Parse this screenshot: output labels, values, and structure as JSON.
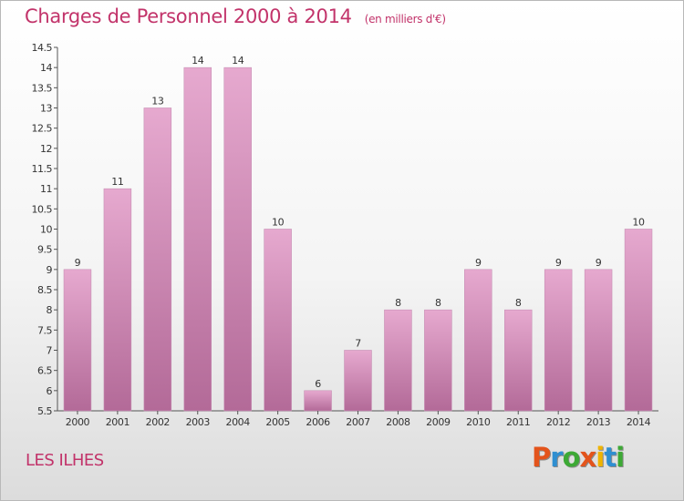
{
  "header": {
    "title": "Charges de Personnel 2000 à 2014",
    "subtitle": "(en milliers d'€)"
  },
  "footer": {
    "commune": "LES ILHES",
    "logo_text": "Proxiti"
  },
  "colors": {
    "accent": "#c2336a",
    "bar_top": "#e6a9cf",
    "bar_bottom": "#b36a98",
    "logo": [
      "#e3541c",
      "#2f8fd1",
      "#3da935",
      "#e3541c",
      "#f0b400",
      "#2f8fd1",
      "#3da935"
    ]
  },
  "chart_data": {
    "type": "bar",
    "categories": [
      "2000",
      "2001",
      "2002",
      "2003",
      "2004",
      "2005",
      "2006",
      "2007",
      "2008",
      "2009",
      "2010",
      "2011",
      "2012",
      "2013",
      "2014"
    ],
    "values": [
      9,
      11,
      13,
      14,
      14,
      10,
      6,
      7,
      8,
      8,
      9,
      8,
      9,
      9,
      10
    ],
    "data_labels": [
      "9",
      "11",
      "13",
      "14",
      "14",
      "10",
      "6",
      "7",
      "8",
      "8",
      "9",
      "8",
      "9",
      "9",
      "10"
    ],
    "yticks": [
      "5.5",
      "6",
      "6.5",
      "7",
      "7.5",
      "8",
      "8.5",
      "9",
      "9.5",
      "10",
      "10.5",
      "11",
      "11.5",
      "12",
      "12.5",
      "13",
      "13.5",
      "14",
      "14.5"
    ],
    "ylim": [
      5.5,
      14.5
    ],
    "ytick_step": 0.5,
    "grid": false,
    "legend": "none"
  }
}
